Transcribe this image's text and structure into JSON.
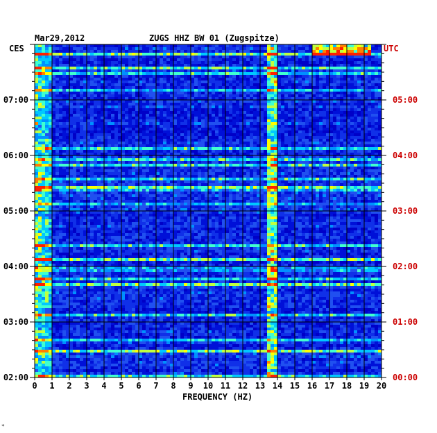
{
  "chart_data": {
    "type": "heatmap",
    "date": "Mar29,2012",
    "title": "ZUGS HHZ BW 01 (Zugspitze)",
    "left_zone": "CES",
    "right_zone": "UTC",
    "xlabel": "FREQUENCY (HZ)",
    "xlim": [
      0,
      20
    ],
    "x_ticks": [
      "0",
      "1",
      "2",
      "3",
      "4",
      "5",
      "6",
      "7",
      "8",
      "9",
      "10",
      "11",
      "12",
      "13",
      "14",
      "15",
      "16",
      "17",
      "18",
      "19",
      "20"
    ],
    "y_ticks_left": [
      {
        "label": "07:00",
        "hour": 7
      },
      {
        "label": "06:00",
        "hour": 6
      },
      {
        "label": "05:00",
        "hour": 5
      },
      {
        "label": "04:00",
        "hour": 4
      },
      {
        "label": "03:00",
        "hour": 3
      },
      {
        "label": "02:00",
        "hour": 2
      }
    ],
    "y_ticks_right": [
      {
        "label": "05:00",
        "hour": 7
      },
      {
        "label": "04:00",
        "hour": 6
      },
      {
        "label": "03:00",
        "hour": 5
      },
      {
        "label": "02:00",
        "hour": 4
      },
      {
        "label": "01:00",
        "hour": 3
      },
      {
        "label": "00:00",
        "hour": 2
      }
    ],
    "ylim_hours_local": [
      2,
      8
    ],
    "colors": {
      "background": "#0000c8",
      "low": "#1030e0",
      "mid": "#00c8ff",
      "high": "#ffff00",
      "peak": "#ff2000",
      "grid": "#000000",
      "right_axis": "#cc0000"
    },
    "features": [
      {
        "name": "low-frequency band",
        "freq_range": [
          0,
          1
        ]
      },
      {
        "name": "persistent line",
        "freq_range": [
          13.4,
          13.9
        ]
      },
      {
        "name": "burst at top",
        "freq_range": [
          16,
          19.5
        ]
      }
    ],
    "footnote": "*"
  }
}
